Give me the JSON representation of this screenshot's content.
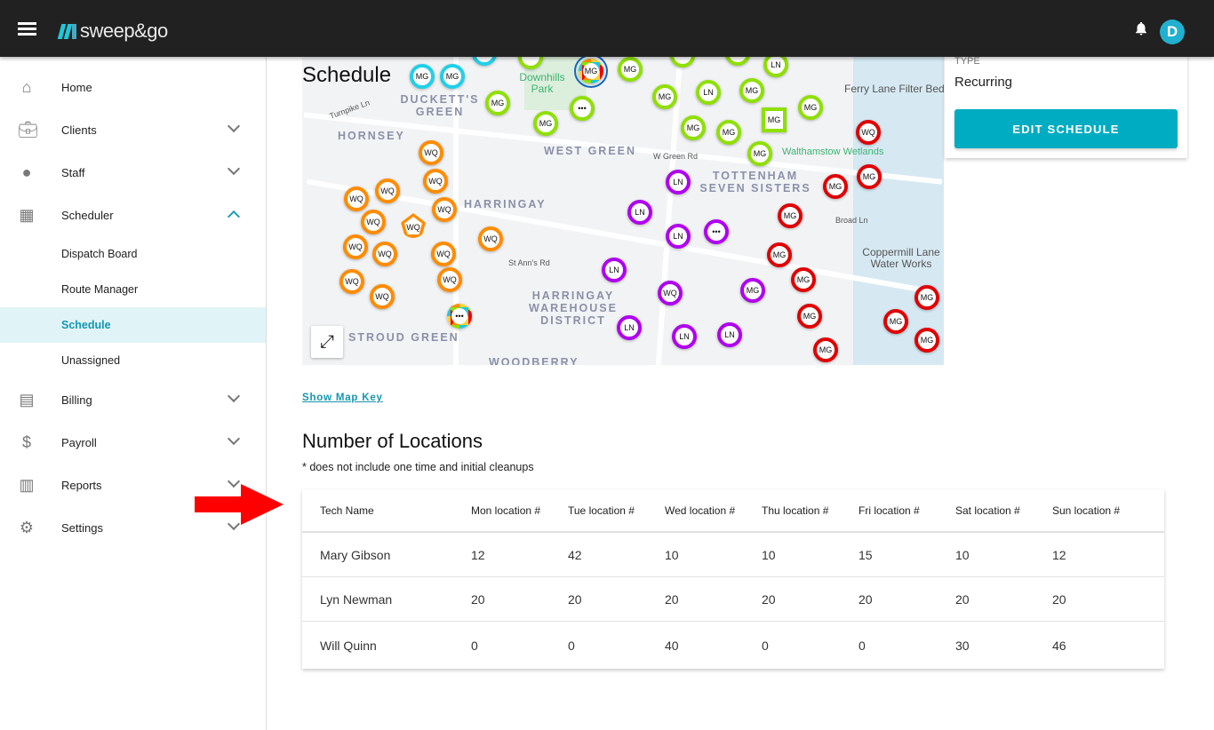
{
  "header": {
    "logo": "sweep&go",
    "avatar": "D",
    "icons": [
      "menu-icon",
      "bell-icon"
    ]
  },
  "sidebar": {
    "items": [
      {
        "label": "Home",
        "icon": "home-icon"
      },
      {
        "label": "Clients",
        "icon": "briefcase-icon"
      },
      {
        "label": "Staff",
        "icon": "person-icon"
      },
      {
        "label": "Scheduler",
        "icon": "calendar-icon",
        "expanded": true,
        "children": [
          "Dispatch Board",
          "Route Manager",
          "Schedule",
          "Unassigned"
        ],
        "active_child": "Schedule"
      },
      {
        "label": "Billing",
        "icon": "receipt-icon"
      },
      {
        "label": "Payroll",
        "icon": "dollar-icon"
      },
      {
        "label": "Reports",
        "icon": "chart-icon"
      },
      {
        "label": "Settings",
        "icon": "gear-icon"
      }
    ]
  },
  "map": {
    "title": "Schedule",
    "place_labels": [
      "HORNSEY",
      "DUCKETT'S GREEN",
      "WEST GREEN",
      "HARRINGAY",
      "TOTTENHAM SEVEN SISTERS",
      "HARRINGAY WAREHOUSE DISTRICT",
      "STROUD GREEN",
      "WOODBERRY",
      "Ferry Lane Filter Beds",
      "Walthamstow Wetlands",
      "Coppermill Lane Water Works",
      "Downhills Park",
      "W Green Rd",
      "St Ann's Rd",
      "Broad Ln",
      "Turnpike Ln"
    ],
    "colors": {
      "MG_green": "#8fe000",
      "MG_red": "#e00000",
      "LN": "#b000f0",
      "WQ": "#ff8c00",
      "cyan": "#21d0e8"
    },
    "markers": [
      {
        "label": "MG",
        "color": "#21d0e8"
      },
      {
        "label": "MG",
        "color": "#21d0e8"
      },
      {
        "label": "",
        "color": "#21d0e8"
      },
      {
        "label": "",
        "color": "#8fe000"
      },
      {
        "label": "MG",
        "color": "multi",
        "shape": "circle-selected"
      },
      {
        "label": "MG",
        "color": "#8fe000"
      },
      {
        "label": "",
        "color": "#8fe000"
      },
      {
        "label": "",
        "color": "#8fe000"
      },
      {
        "label": "LN",
        "color": "#8fe000"
      },
      {
        "label": "MG",
        "color": "#8fe000"
      },
      {
        "label": "•••",
        "color": "#8fe000"
      },
      {
        "label": "MG",
        "color": "#8fe000"
      },
      {
        "label": "MG",
        "color": "#8fe000"
      },
      {
        "label": "LN",
        "color": "#8fe000"
      },
      {
        "label": "MG",
        "color": "#8fe000"
      },
      {
        "label": "MG",
        "color": "#8fe000"
      },
      {
        "label": "MG",
        "color": "#8fe000",
        "shape": "square"
      },
      {
        "label": "MG",
        "color": "#8fe000"
      },
      {
        "label": "MG",
        "color": "#8fe000"
      },
      {
        "label": "MG",
        "color": "#8fe000"
      },
      {
        "label": "WQ",
        "color": "#e00000"
      },
      {
        "label": "WQ",
        "color": "#ff8c00"
      },
      {
        "label": "WQ",
        "color": "#ff8c00"
      },
      {
        "label": "WQ",
        "color": "#ff8c00"
      },
      {
        "label": "WQ",
        "color": "#ff8c00"
      },
      {
        "label": "WQ",
        "color": "#ff8c00"
      },
      {
        "label": "WQ",
        "color": "#ff8c00"
      },
      {
        "label": "WQ",
        "color": "#ff8c00",
        "shape": "pentagon"
      },
      {
        "label": "WQ",
        "color": "#ff8c00"
      },
      {
        "label": "WQ",
        "color": "#ff8c00"
      },
      {
        "label": "WQ",
        "color": "#ff8c00"
      },
      {
        "label": "WQ",
        "color": "#ff8c00"
      },
      {
        "label": "WQ",
        "color": "#ff8c00"
      },
      {
        "label": "WQ",
        "color": "#ff8c00"
      },
      {
        "label": "WQ",
        "color": "#ff8c00"
      },
      {
        "label": "•••",
        "color": "multi"
      },
      {
        "label": "LN",
        "color": "#b000f0"
      },
      {
        "label": "LN",
        "color": "#b000f0"
      },
      {
        "label": "LN",
        "color": "#b000f0"
      },
      {
        "label": "•••",
        "color": "#b000f0"
      },
      {
        "label": "LN",
        "color": "#b000f0"
      },
      {
        "label": "WQ",
        "color": "#b000f0"
      },
      {
        "label": "MG",
        "color": "#b000f0"
      },
      {
        "label": "LN",
        "color": "#b000f0"
      },
      {
        "label": "LN",
        "color": "#b000f0"
      },
      {
        "label": "LN",
        "color": "#b000f0"
      },
      {
        "label": "MG",
        "color": "#e00000"
      },
      {
        "label": "MG",
        "color": "#e00000"
      },
      {
        "label": "MG",
        "color": "#e00000"
      },
      {
        "label": "MG",
        "color": "#e00000"
      },
      {
        "label": "MG",
        "color": "#e00000"
      },
      {
        "label": "MG",
        "color": "#e00000"
      },
      {
        "label": "MG",
        "color": "#e00000"
      },
      {
        "label": "MG",
        "color": "#e00000"
      },
      {
        "label": "MG",
        "color": "#e00000"
      },
      {
        "label": "MG",
        "color": "#e00000"
      }
    ]
  },
  "details": {
    "type_label": "TYPE",
    "type_value": "Recurring",
    "edit_button": "EDIT SCHEDULE"
  },
  "map_key_link": "Show Map Key",
  "locations": {
    "title": "Number of Locations",
    "note": "* does not include one time and initial cleanups",
    "columns": [
      "Tech Name",
      "Mon location #",
      "Tue location #",
      "Wed location #",
      "Thu location #",
      "Fri location #",
      "Sat location #",
      "Sun location #"
    ],
    "rows": [
      [
        "Mary Gibson",
        "12",
        "42",
        "10",
        "10",
        "15",
        "10",
        "12"
      ],
      [
        "Lyn Newman",
        "20",
        "20",
        "20",
        "20",
        "20",
        "20",
        "20"
      ],
      [
        "Will Quinn",
        "0",
        "0",
        "40",
        "0",
        "0",
        "30",
        "46"
      ]
    ]
  }
}
